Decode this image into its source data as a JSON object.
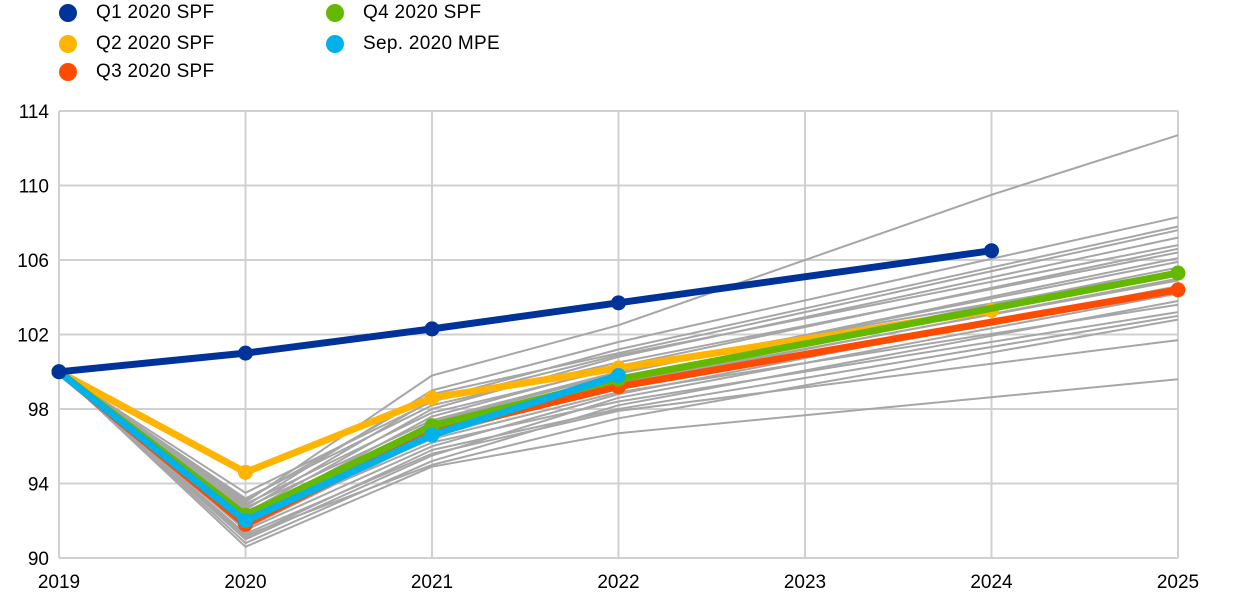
{
  "chart_data": {
    "type": "line",
    "x": [
      2019,
      2020,
      2021,
      2022,
      2023,
      2024,
      2025
    ],
    "xticks": [
      "2019",
      "2020",
      "2021",
      "2022",
      "2023",
      "2024",
      "2025"
    ],
    "yticks": [
      "90",
      "94",
      "98",
      "102",
      "106",
      "110",
      "114"
    ],
    "ylim": [
      90,
      114
    ],
    "xlim": [
      2019,
      2025
    ],
    "grid": true,
    "legend_position": "top-left",
    "series": [
      {
        "name": "Q1 2020 SPF",
        "color": "#003399",
        "marker": true,
        "points": [
          [
            2019,
            100.0
          ],
          [
            2020,
            101.0
          ],
          [
            2021,
            102.3
          ],
          [
            2022,
            103.7
          ],
          [
            2024,
            106.5
          ]
        ]
      },
      {
        "name": "Q2 2020 SPF",
        "color": "#FFB400",
        "marker": true,
        "points": [
          [
            2019,
            100.0
          ],
          [
            2020,
            94.6
          ],
          [
            2021,
            98.6
          ],
          [
            2022,
            100.2
          ],
          [
            2024,
            103.3
          ]
        ]
      },
      {
        "name": "Q3 2020 SPF",
        "color": "#FF4B00",
        "marker": true,
        "points": [
          [
            2019,
            100.0
          ],
          [
            2020,
            91.8
          ],
          [
            2021,
            96.8
          ],
          [
            2022,
            99.2
          ],
          [
            2025,
            104.4
          ]
        ]
      },
      {
        "name": "Q4 2020 SPF",
        "color": "#65B800",
        "marker": true,
        "points": [
          [
            2019,
            100.0
          ],
          [
            2020,
            92.3
          ],
          [
            2021,
            97.1
          ],
          [
            2022,
            99.6
          ],
          [
            2025,
            105.3
          ]
        ]
      },
      {
        "name": "Sep. 2020 MPE",
        "color": "#00B1EA",
        "marker": true,
        "points": [
          [
            2019,
            100.0
          ],
          [
            2020,
            92.0
          ],
          [
            2021,
            96.6
          ],
          [
            2022,
            99.8
          ]
        ]
      }
    ],
    "individual_forecasts": {
      "color": "#A6A6A6",
      "lines": [
        [
          [
            2019,
            100
          ],
          [
            2020,
            90.8
          ],
          [
            2021,
            95.2
          ],
          [
            2022,
            98.2
          ],
          [
            2025,
            103.8
          ]
        ],
        [
          [
            2019,
            100
          ],
          [
            2020,
            91.0
          ],
          [
            2021,
            95.5
          ],
          [
            2022,
            98.6
          ],
          [
            2025,
            104.2
          ]
        ],
        [
          [
            2019,
            100
          ],
          [
            2020,
            91.2
          ],
          [
            2021,
            95.0
          ],
          [
            2022,
            97.5
          ],
          [
            2025,
            102.8
          ]
        ],
        [
          [
            2019,
            100
          ],
          [
            2020,
            91.5
          ],
          [
            2021,
            96.0
          ],
          [
            2022,
            98.8
          ],
          [
            2025,
            104.6
          ]
        ],
        [
          [
            2019,
            100
          ],
          [
            2020,
            91.6
          ],
          [
            2021,
            96.5
          ],
          [
            2022,
            99.3
          ],
          [
            2025,
            105.0
          ]
        ],
        [
          [
            2019,
            100
          ],
          [
            2020,
            91.8
          ],
          [
            2021,
            97.0
          ],
          [
            2022,
            99.6
          ],
          [
            2025,
            105.6
          ]
        ],
        [
          [
            2019,
            100
          ],
          [
            2020,
            92.0
          ],
          [
            2021,
            97.3
          ],
          [
            2022,
            99.9
          ],
          [
            2025,
            106.1
          ]
        ],
        [
          [
            2019,
            100
          ],
          [
            2020,
            92.2
          ],
          [
            2021,
            97.6
          ],
          [
            2022,
            100.3
          ],
          [
            2025,
            106.6
          ]
        ],
        [
          [
            2019,
            100
          ],
          [
            2020,
            92.4
          ],
          [
            2021,
            98.0
          ],
          [
            2022,
            100.8
          ],
          [
            2025,
            107.2
          ]
        ],
        [
          [
            2019,
            100
          ],
          [
            2020,
            92.6
          ],
          [
            2021,
            98.5
          ],
          [
            2022,
            101.2
          ],
          [
            2025,
            107.8
          ]
        ],
        [
          [
            2019,
            100
          ],
          [
            2020,
            92.8
          ],
          [
            2021,
            99.0
          ],
          [
            2022,
            101.6
          ],
          [
            2025,
            108.3
          ]
        ],
        [
          [
            2019,
            100
          ],
          [
            2020,
            93.0
          ],
          [
            2021,
            99.8
          ],
          [
            2022,
            102.5
          ],
          [
            2024,
            109.5
          ],
          [
            2025,
            112.7
          ]
        ],
        [
          [
            2019,
            100
          ],
          [
            2020,
            93.2
          ],
          [
            2021,
            98.2
          ],
          [
            2022,
            100.5
          ],
          [
            2025,
            106.4
          ]
        ],
        [
          [
            2019,
            100
          ],
          [
            2020,
            93.5
          ],
          [
            2021,
            98.4
          ],
          [
            2022,
            100.9
          ],
          [
            2025,
            106.8
          ]
        ],
        [
          [
            2019,
            100
          ],
          [
            2020,
            90.6
          ],
          [
            2021,
            94.9
          ],
          [
            2022,
            96.7
          ],
          [
            2025,
            99.6
          ]
        ],
        [
          [
            2019,
            100
          ],
          [
            2020,
            91.3
          ],
          [
            2021,
            95.6
          ],
          [
            2022,
            97.9
          ],
          [
            2025,
            101.7
          ]
        ],
        [
          [
            2019,
            100
          ],
          [
            2020,
            91.9
          ],
          [
            2021,
            96.2
          ],
          [
            2022,
            98.4
          ],
          [
            2025,
            103.2
          ]
        ],
        [
          [
            2019,
            100
          ],
          [
            2020,
            92.1
          ],
          [
            2021,
            96.4
          ],
          [
            2022,
            98.9
          ],
          [
            2025,
            103.6
          ]
        ],
        [
          [
            2019,
            100
          ],
          [
            2020,
            92.5
          ],
          [
            2021,
            96.9
          ],
          [
            2022,
            99.4
          ],
          [
            2025,
            104.9
          ]
        ],
        [
          [
            2019,
            100
          ],
          [
            2020,
            92.7
          ],
          [
            2021,
            97.4
          ],
          [
            2022,
            100.0
          ],
          [
            2025,
            105.9
          ]
        ],
        [
          [
            2019,
            100
          ],
          [
            2020,
            92.9
          ],
          [
            2021,
            97.8
          ],
          [
            2022,
            100.2
          ],
          [
            2025,
            105.4
          ]
        ],
        [
          [
            2019,
            100
          ],
          [
            2020,
            93.1
          ],
          [
            2021,
            98.8
          ],
          [
            2022,
            101.0
          ],
          [
            2025,
            107.6
          ]
        ],
        [
          [
            2019,
            100
          ],
          [
            2020,
            91.1
          ],
          [
            2021,
            95.8
          ],
          [
            2022,
            98.0
          ],
          [
            2025,
            103.0
          ]
        ],
        [
          [
            2019,
            100
          ],
          [
            2020,
            91.7
          ],
          [
            2021,
            96.7
          ],
          [
            2022,
            99.1
          ],
          [
            2025,
            104.4
          ]
        ]
      ]
    }
  }
}
